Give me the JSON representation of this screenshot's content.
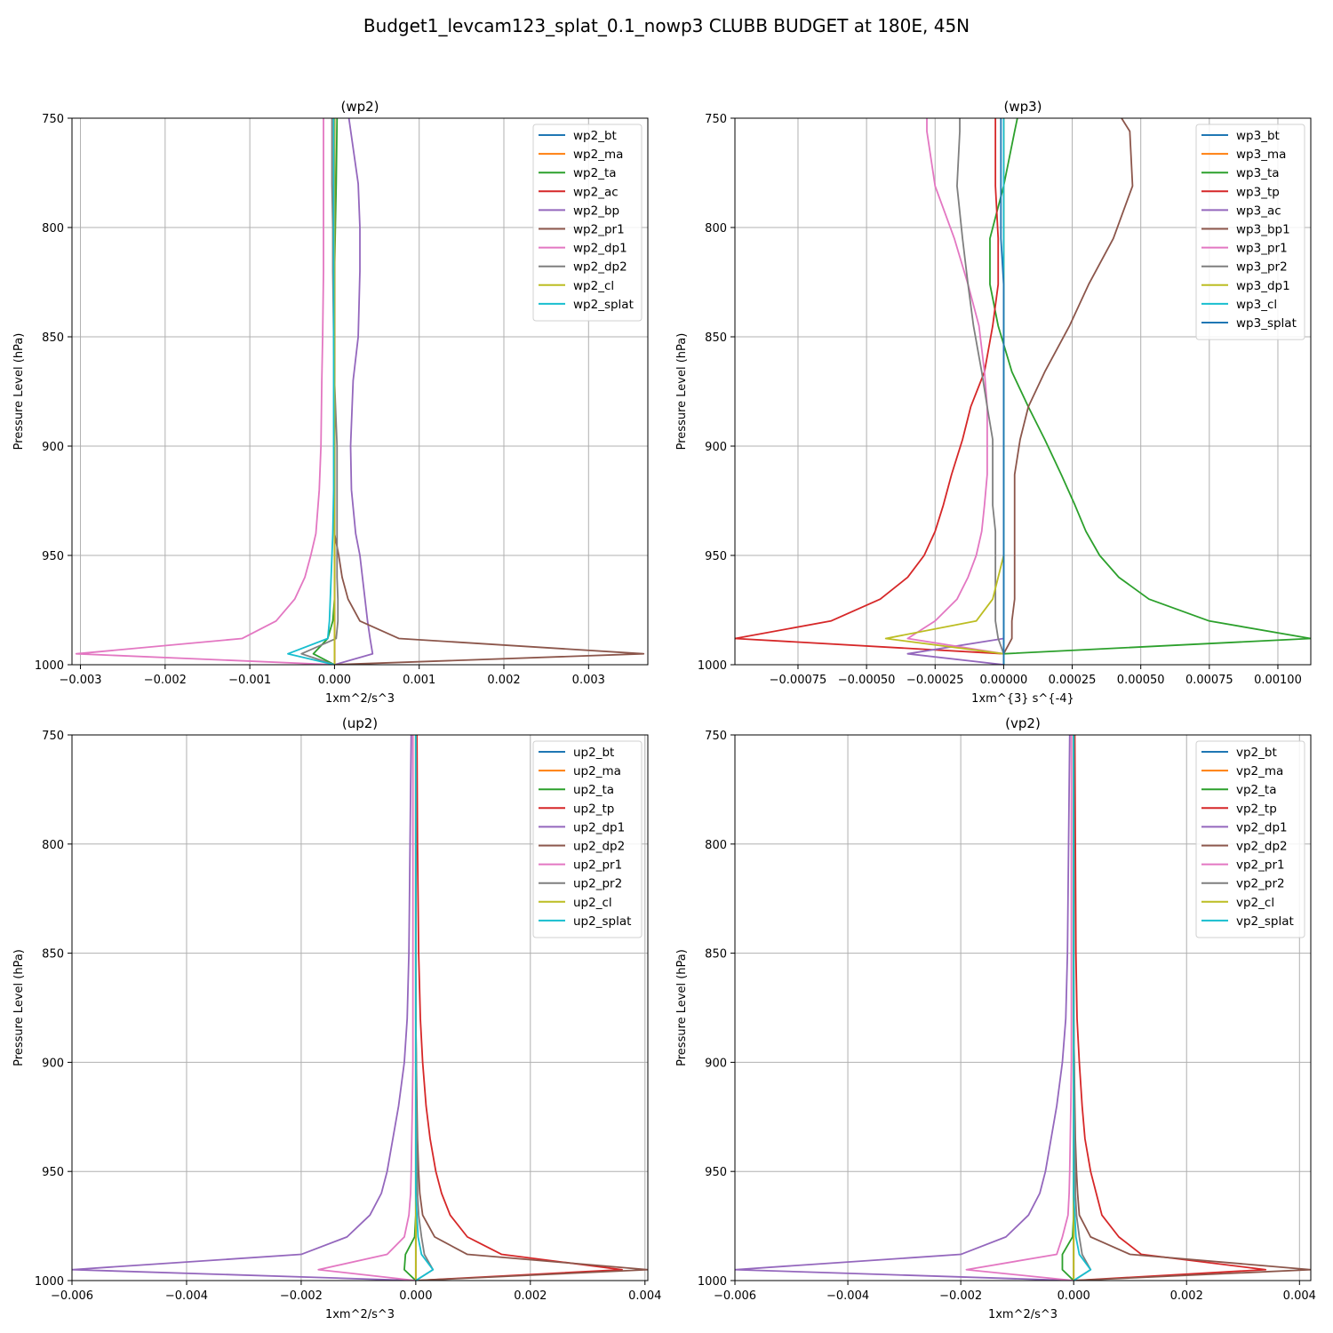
{
  "figure": {
    "title": "Budget1_levcam123_splat_0.1_nowp3 CLUBB BUDGET at 180E, 45N"
  },
  "colors": [
    "#1f77b4",
    "#ff7f0e",
    "#2ca02c",
    "#d62728",
    "#9467bd",
    "#8c564b",
    "#e377c2",
    "#7f7f7f",
    "#bcbd22",
    "#17becf",
    "#1f77b4"
  ],
  "chart_data": [
    {
      "type": "line",
      "title": "(wp2)",
      "xlabel": "1xm^2/s^3",
      "ylabel": "Pressure Level (hPa)",
      "xlim": [
        -0.0031,
        0.0037
      ],
      "ylim": [
        1000,
        750
      ],
      "xticks": [
        -0.003,
        -0.002,
        -0.001,
        0.0,
        0.001,
        0.002,
        0.003
      ],
      "xtick_labels": [
        "−0.003",
        "−0.002",
        "−0.001",
        "0.000",
        "0.001",
        "0.002",
        "0.003"
      ],
      "yticks": [
        750,
        800,
        850,
        900,
        950,
        1000
      ],
      "ytick_labels": [
        "750",
        "800",
        "850",
        "900",
        "950",
        "1000"
      ],
      "legend": "top-right",
      "grid": true,
      "y": [
        750,
        780,
        800,
        820,
        850,
        870,
        900,
        920,
        940,
        950,
        960,
        970,
        980,
        988,
        995,
        1000
      ],
      "series": [
        {
          "name": "wp2_bt",
          "values": [
            0,
            0,
            0,
            0,
            0,
            0,
            0,
            0,
            0,
            0,
            0,
            0,
            0,
            0,
            0,
            0
          ]
        },
        {
          "name": "wp2_ma",
          "values": [
            0,
            0,
            0,
            0,
            0,
            0,
            0,
            0,
            0,
            0,
            0,
            0,
            0,
            0,
            0,
            0
          ]
        },
        {
          "name": "wp2_ta",
          "values": [
            3e-05,
            2e-05,
            1e-05,
            0.0,
            -1e-05,
            0.0,
            0.0,
            0.0,
            0.0,
            0.0,
            0.0,
            0.0,
            -2e-05,
            -8e-05,
            -0.00025,
            0.0
          ]
        },
        {
          "name": "wp2_ac",
          "values": [
            0,
            0,
            0,
            0,
            0,
            0,
            0,
            0,
            0,
            0,
            0,
            0,
            0,
            0,
            0,
            0
          ]
        },
        {
          "name": "wp2_bp",
          "values": [
            0.00017,
            0.00028,
            0.0003,
            0.0003,
            0.00028,
            0.00022,
            0.00019,
            0.0002,
            0.00025,
            0.0003,
            0.00033,
            0.00036,
            0.00039,
            0.00042,
            0.00045,
            0.0
          ]
        },
        {
          "name": "wp2_pr1",
          "values": [
            0,
            0,
            0,
            0,
            0,
            0,
            0,
            0,
            0,
            5e-05,
            9e-05,
            0.00016,
            0.0003,
            0.00076,
            0.00365,
            0.0
          ]
        },
        {
          "name": "wp2_dp1",
          "values": [
            -0.00013,
            -0.00013,
            -0.00013,
            -0.00013,
            -0.00014,
            -0.00015,
            -0.00016,
            -0.00018,
            -0.00022,
            -0.00028,
            -0.00035,
            -0.00047,
            -0.00069,
            -0.00109,
            -0.00305,
            0.0
          ]
        },
        {
          "name": "wp2_dp2",
          "values": [
            -3e-05,
            -3e-05,
            -2e-05,
            -2e-05,
            -1e-05,
            0.0,
            3e-05,
            3e-05,
            3e-05,
            3e-05,
            3e-05,
            4e-05,
            4e-05,
            2e-05,
            -0.00039,
            0.0
          ]
        },
        {
          "name": "wp2_cl",
          "values": [
            0,
            0,
            0,
            0,
            0,
            0,
            0,
            0,
            0,
            0,
            0,
            0,
            0,
            0,
            0,
            0
          ]
        },
        {
          "name": "wp2_splat",
          "values": [
            -1e-05,
            -1e-05,
            -1e-05,
            -1e-05,
            -1e-05,
            -1e-05,
            -1e-05,
            -1e-05,
            -2e-05,
            -3e-05,
            -4e-05,
            -5e-05,
            -6e-05,
            -8e-05,
            -0.00055,
            0.0
          ]
        }
      ]
    },
    {
      "type": "line",
      "title": "(wp3)",
      "xlabel": "1xm^{3} s^{-4}",
      "ylabel": "Pressure Level (hPa)",
      "xlim": [
        -0.00098,
        0.00112
      ],
      "ylim": [
        1000,
        750
      ],
      "xticks": [
        -0.00075,
        -0.0005,
        -0.00025,
        0.0,
        0.00025,
        0.0005,
        0.00075,
        0.001
      ],
      "xtick_labels": [
        "−0.00075",
        "−0.00050",
        "−0.00025",
        "0.00000",
        "0.00025",
        "0.00050",
        "0.00075",
        "0.00100"
      ],
      "yticks": [
        750,
        800,
        850,
        900,
        950,
        1000
      ],
      "ytick_labels": [
        "750",
        "800",
        "850",
        "900",
        "950",
        "1000"
      ],
      "legend": "top-right",
      "grid": true,
      "y": [
        750,
        756,
        781,
        805,
        826,
        845,
        866,
        882,
        897,
        913,
        927,
        939,
        950,
        960,
        970,
        980,
        988,
        995,
        1000
      ],
      "series": [
        {
          "name": "wp3_bt",
          "values": [
            0,
            0,
            0,
            0,
            0,
            0,
            0,
            0,
            0,
            0,
            0,
            0,
            0,
            0,
            0,
            0,
            0,
            0,
            0
          ]
        },
        {
          "name": "wp3_ma",
          "values": [
            0,
            0,
            0,
            0,
            0,
            0,
            0,
            0,
            0,
            0,
            0,
            0,
            0,
            0,
            0,
            0,
            0,
            0,
            0
          ]
        },
        {
          "name": "wp3_ta",
          "values": [
            5e-05,
            4e-05,
            0.0,
            -5e-05,
            -5e-05,
            -2e-05,
            3e-05,
            9e-05,
            0.00015,
            0.00021,
            0.00026,
            0.0003,
            0.00035,
            0.00042,
            0.00053,
            0.00075,
            0.00112,
            0.0,
            0.0
          ]
        },
        {
          "name": "wp3_tp",
          "values": [
            -3e-05,
            -3e-05,
            -3e-05,
            -2e-05,
            -2e-05,
            -4e-05,
            -7e-05,
            -0.00012,
            -0.00015,
            -0.00019,
            -0.00022,
            -0.00025,
            -0.00029,
            -0.00035,
            -0.00045,
            -0.00063,
            -0.00098,
            0.0,
            0.0
          ]
        },
        {
          "name": "wp3_ac",
          "values": [
            0,
            0,
            0,
            0,
            0,
            0,
            0,
            0,
            0,
            0,
            0,
            0,
            0,
            0,
            0,
            0,
            0,
            -0.00035,
            0.0
          ]
        },
        {
          "name": "wp3_bp1",
          "values": [
            0.00043,
            0.00046,
            0.00047,
            0.0004,
            0.00031,
            0.00024,
            0.00015,
            9e-05,
            6e-05,
            4e-05,
            4e-05,
            4e-05,
            4e-05,
            4e-05,
            4e-05,
            3e-05,
            3e-05,
            0.0,
            0.0
          ]
        },
        {
          "name": "wp3_pr1",
          "values": [
            -0.00028,
            -0.00028,
            -0.00025,
            -0.00018,
            -0.00013,
            -9e-05,
            -7e-05,
            -6e-05,
            -6e-05,
            -6e-05,
            -7e-05,
            -8e-05,
            -0.0001,
            -0.00013,
            -0.00017,
            -0.00025,
            -0.00035,
            0.0,
            0.0
          ]
        },
        {
          "name": "wp3_pr2",
          "values": [
            -0.00016,
            -0.00016,
            -0.00017,
            -0.00015,
            -0.00013,
            -0.00011,
            -8e-05,
            -6e-05,
            -4e-05,
            -4e-05,
            -4e-05,
            -3e-05,
            -3e-05,
            -3e-05,
            -3e-05,
            -3e-05,
            -2e-05,
            0.0,
            0.0
          ]
        },
        {
          "name": "wp3_dp1",
          "values": [
            0,
            0,
            0,
            0,
            0,
            0,
            0,
            0,
            0,
            0,
            0,
            0,
            0,
            -2e-05,
            -4e-05,
            -0.0001,
            -0.00043,
            0.0,
            0.0
          ]
        },
        {
          "name": "wp3_cl",
          "values": [
            0,
            0,
            0,
            0,
            0,
            0,
            0,
            0,
            0,
            0,
            0,
            0,
            0,
            0,
            0,
            0,
            0,
            0,
            0
          ]
        },
        {
          "name": "wp3_splat",
          "values": [
            -1e-05,
            -1e-05,
            -1e-05,
            -1e-05,
            0.0,
            0.0,
            0.0,
            0.0,
            0.0,
            0.0,
            0.0,
            0.0,
            0.0,
            0.0,
            0.0,
            0.0,
            0.0,
            0.0,
            0.0
          ]
        }
      ]
    },
    {
      "type": "line",
      "title": "(up2)",
      "xlabel": "1xm^2/s^3",
      "ylabel": "Pressure Level (hPa)",
      "xlim": [
        -0.006,
        0.00405
      ],
      "ylim": [
        1000,
        750
      ],
      "xticks": [
        -0.006,
        -0.004,
        -0.002,
        0.0,
        0.002,
        0.004
      ],
      "xtick_labels": [
        "−0.006",
        "−0.004",
        "−0.002",
        "0.000",
        "0.002",
        "0.004"
      ],
      "yticks": [
        750,
        800,
        850,
        900,
        950,
        1000
      ],
      "ytick_labels": [
        "750",
        "800",
        "850",
        "900",
        "950",
        "1000"
      ],
      "legend": "top-right",
      "grid": true,
      "y": [
        750,
        800,
        850,
        880,
        900,
        920,
        935,
        950,
        960,
        970,
        980,
        988,
        995,
        1000
      ],
      "series": [
        {
          "name": "up2_bt",
          "values": [
            0,
            0,
            0,
            0,
            0,
            0,
            0,
            0,
            0,
            0,
            0,
            0,
            0,
            0
          ]
        },
        {
          "name": "up2_ma",
          "values": [
            0,
            0,
            0,
            0,
            0,
            0,
            0,
            0,
            0,
            0,
            0,
            0,
            0,
            0
          ]
        },
        {
          "name": "up2_ta",
          "values": [
            0,
            0,
            0,
            0,
            0,
            0,
            0,
            0,
            0,
            0,
            -2e-05,
            -0.00018,
            -0.0002,
            0.0
          ]
        },
        {
          "name": "up2_tp",
          "values": [
            2e-05,
            3e-05,
            5e-05,
            8e-05,
            0.00012,
            0.00018,
            0.00025,
            0.00035,
            0.00045,
            0.0006,
            0.0009,
            0.0015,
            0.0036,
            0.0
          ]
        },
        {
          "name": "up2_dp1",
          "values": [
            -8e-05,
            -0.0001,
            -0.00012,
            -0.00015,
            -0.0002,
            -0.0003,
            -0.0004,
            -0.0005,
            -0.0006,
            -0.0008,
            -0.0012,
            -0.002,
            -0.006,
            0.0
          ]
        },
        {
          "name": "up2_dp2",
          "values": [
            0,
            0,
            0,
            0,
            1e-05,
            2e-05,
            3e-05,
            5e-05,
            7e-05,
            0.00012,
            0.00033,
            0.0009,
            0.00405,
            0.0
          ]
        },
        {
          "name": "up2_pr1",
          "values": [
            -5e-05,
            -5e-05,
            -5e-05,
            -5e-05,
            -5e-05,
            -6e-05,
            -7e-05,
            -8e-05,
            -9e-05,
            -0.00012,
            -0.0002,
            -0.0005,
            -0.0017,
            0.0
          ]
        },
        {
          "name": "up2_pr2",
          "values": [
            0,
            0,
            0,
            0,
            1e-05,
            1e-05,
            2e-05,
            3e-05,
            3e-05,
            5e-05,
            0.0001,
            0.00015,
            0.0003,
            0.0
          ]
        },
        {
          "name": "up2_cl",
          "values": [
            0,
            0,
            0,
            0,
            0,
            0,
            0,
            0,
            0,
            0,
            0,
            0,
            0,
            0
          ]
        },
        {
          "name": "up2_splat",
          "values": [
            0,
            0,
            0,
            0,
            0,
            0,
            0,
            0,
            0,
            2e-05,
            4e-05,
            0.0001,
            0.0003,
            0.0
          ]
        }
      ]
    },
    {
      "type": "line",
      "title": "(vp2)",
      "xlabel": "1xm^2/s^3",
      "ylabel": "Pressure Level (hPa)",
      "xlim": [
        -0.006,
        0.0042
      ],
      "ylim": [
        1000,
        750
      ],
      "xticks": [
        -0.006,
        -0.004,
        -0.002,
        0.0,
        0.002,
        0.004
      ],
      "xtick_labels": [
        "−0.006",
        "−0.004",
        "−0.002",
        "0.000",
        "0.002",
        "0.004"
      ],
      "yticks": [
        750,
        800,
        850,
        900,
        950,
        1000
      ],
      "ytick_labels": [
        "750",
        "800",
        "850",
        "900",
        "950",
        "1000"
      ],
      "legend": "top-right",
      "grid": true,
      "y": [
        750,
        800,
        850,
        880,
        900,
        920,
        935,
        950,
        960,
        970,
        980,
        988,
        995,
        1000
      ],
      "series": [
        {
          "name": "vp2_bt",
          "values": [
            0,
            0,
            0,
            0,
            0,
            0,
            0,
            0,
            0,
            0,
            0,
            0,
            0,
            0
          ]
        },
        {
          "name": "vp2_ma",
          "values": [
            0,
            0,
            0,
            0,
            0,
            0,
            0,
            0,
            0,
            0,
            0,
            0,
            0,
            0
          ]
        },
        {
          "name": "vp2_ta",
          "values": [
            0,
            0,
            0,
            0,
            0,
            0,
            0,
            0,
            0,
            0,
            -2e-05,
            -0.0002,
            -0.0002,
            0.0
          ]
        },
        {
          "name": "vp2_tp",
          "values": [
            2e-05,
            3e-05,
            4e-05,
            6e-05,
            0.0001,
            0.00015,
            0.0002,
            0.0003,
            0.0004,
            0.0005,
            0.0008,
            0.0012,
            0.0034,
            0.0
          ]
        },
        {
          "name": "vp2_dp1",
          "values": [
            -7e-05,
            -9e-05,
            -0.00011,
            -0.00014,
            -0.0002,
            -0.0003,
            -0.0004,
            -0.0005,
            -0.0006,
            -0.0008,
            -0.0012,
            -0.002,
            -0.006,
            0.0
          ]
        },
        {
          "name": "vp2_dp2",
          "values": [
            0,
            0,
            0,
            0,
            1e-05,
            2e-05,
            3e-05,
            5e-05,
            7e-05,
            0.0001,
            0.0003,
            0.001,
            0.0042,
            0.0
          ]
        },
        {
          "name": "vp2_pr1",
          "values": [
            -4e-05,
            -4e-05,
            -4e-05,
            -4e-05,
            -4e-05,
            -5e-05,
            -6e-05,
            -7e-05,
            -8e-05,
            -0.0001,
            -0.0002,
            -0.0003,
            -0.0019,
            0.0
          ]
        },
        {
          "name": "vp2_pr2",
          "values": [
            0,
            0,
            0,
            0,
            1e-05,
            1e-05,
            2e-05,
            3e-05,
            3e-05,
            5e-05,
            0.0001,
            0.00015,
            0.0003,
            0.0
          ]
        },
        {
          "name": "vp2_cl",
          "values": [
            0,
            0,
            0,
            0,
            0,
            0,
            0,
            0,
            0,
            0,
            0,
            0,
            0,
            0
          ]
        },
        {
          "name": "vp2_splat",
          "values": [
            0,
            0,
            0,
            0,
            0,
            0,
            0,
            0,
            0,
            2e-05,
            4e-05,
            0.0001,
            0.0003,
            0.0
          ]
        }
      ]
    }
  ]
}
